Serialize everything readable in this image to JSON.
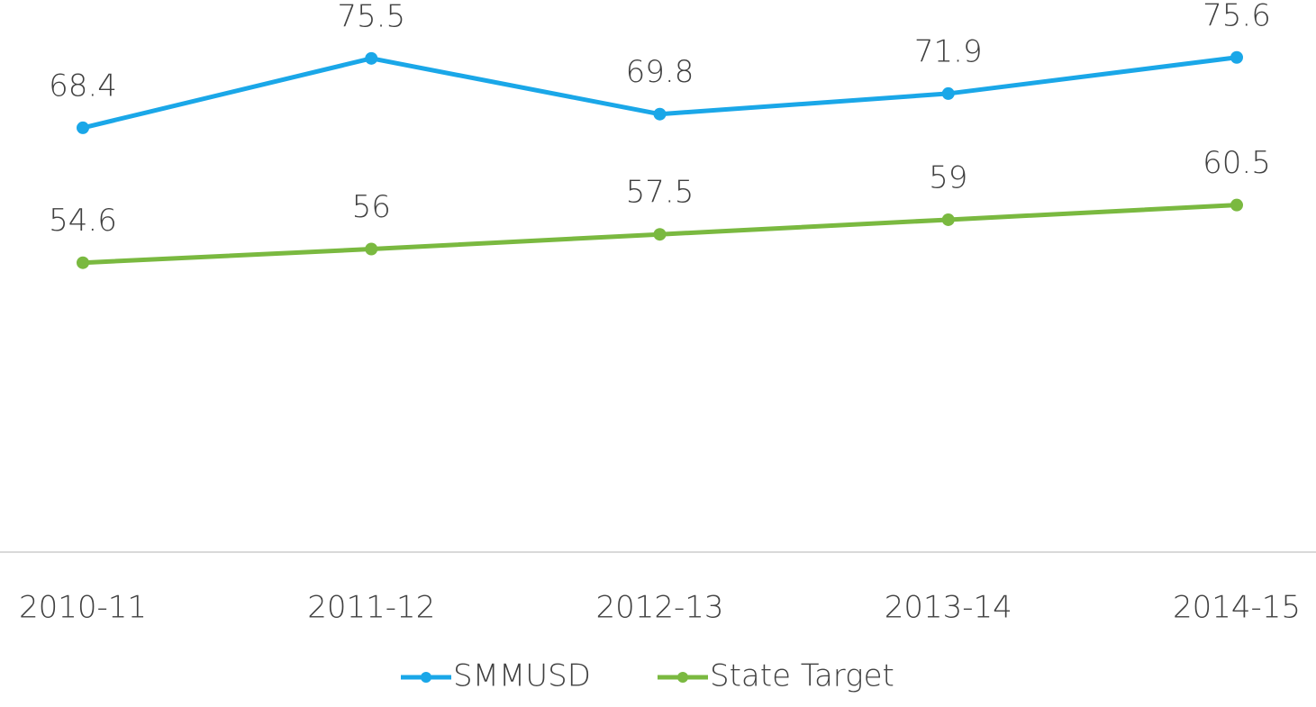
{
  "chart_data": {
    "type": "line",
    "categories": [
      "2010-11",
      "2011-12",
      "2012-13",
      "2013-14",
      "2014-15"
    ],
    "series": [
      {
        "name": "SMMUSD",
        "color": "#1aa7e8",
        "values": [
          68.4,
          75.5,
          69.8,
          71.9,
          75.6
        ]
      },
      {
        "name": "State Target",
        "color": "#7ab940",
        "values": [
          54.6,
          56,
          57.5,
          59,
          60.5
        ]
      }
    ],
    "ylim": [
      25,
      80
    ],
    "legend": "bottom"
  }
}
